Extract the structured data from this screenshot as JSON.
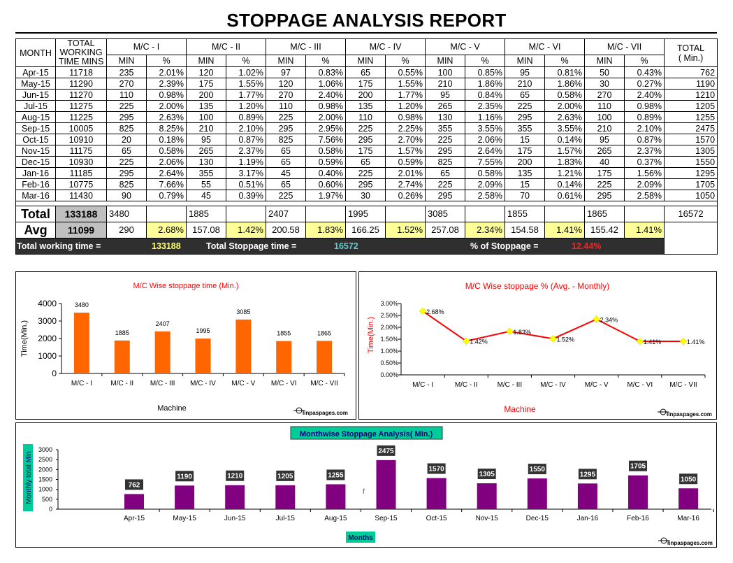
{
  "report": {
    "title": "STOPPAGE ANALYSIS REPORT",
    "headers": {
      "month": "MONTH",
      "total_working_1": "TOTAL",
      "total_working_2": "WORKING",
      "total_working_3": "TIME MINS",
      "machines": [
        "M/C - I",
        "M/C - II",
        "M/C - III",
        "M/C - IV",
        "M/C - V",
        "M/C - VI",
        "M/C - VII"
      ],
      "min": "MIN",
      "pct": "%",
      "total_1": "TOTAL",
      "total_2": "( Min.)"
    },
    "rows": [
      {
        "month": "Apr-15",
        "working": "11718",
        "cells": [
          [
            "235",
            "2.01%"
          ],
          [
            "120",
            "1.02%"
          ],
          [
            "97",
            "0.83%"
          ],
          [
            "65",
            "0.55%"
          ],
          [
            "100",
            "0.85%"
          ],
          [
            "95",
            "0.81%"
          ],
          [
            "50",
            "0.43%"
          ]
        ],
        "total": "762"
      },
      {
        "month": "May-15",
        "working": "11290",
        "cells": [
          [
            "270",
            "2.39%"
          ],
          [
            "175",
            "1.55%"
          ],
          [
            "120",
            "1.06%"
          ],
          [
            "175",
            "1.55%"
          ],
          [
            "210",
            "1.86%"
          ],
          [
            "210",
            "1.86%"
          ],
          [
            "30",
            "0.27%"
          ]
        ],
        "total": "1190"
      },
      {
        "month": "Jun-15",
        "working": "11270",
        "cells": [
          [
            "110",
            "0.98%"
          ],
          [
            "200",
            "1.77%"
          ],
          [
            "270",
            "2.40%"
          ],
          [
            "200",
            "1.77%"
          ],
          [
            "95",
            "0.84%"
          ],
          [
            "65",
            "0.58%"
          ],
          [
            "270",
            "2.40%"
          ]
        ],
        "total": "1210"
      },
      {
        "month": "Jul-15",
        "working": "11275",
        "cells": [
          [
            "225",
            "2.00%"
          ],
          [
            "135",
            "1.20%"
          ],
          [
            "110",
            "0.98%"
          ],
          [
            "135",
            "1.20%"
          ],
          [
            "265",
            "2.35%"
          ],
          [
            "225",
            "2.00%"
          ],
          [
            "110",
            "0.98%"
          ]
        ],
        "total": "1205"
      },
      {
        "month": "Aug-15",
        "working": "11225",
        "cells": [
          [
            "295",
            "2.63%"
          ],
          [
            "100",
            "0.89%"
          ],
          [
            "225",
            "2.00%"
          ],
          [
            "110",
            "0.98%"
          ],
          [
            "130",
            "1.16%"
          ],
          [
            "295",
            "2.63%"
          ],
          [
            "100",
            "0.89%"
          ]
        ],
        "total": "1255"
      },
      {
        "month": "Sep-15",
        "working": "10005",
        "cells": [
          [
            "825",
            "8.25%"
          ],
          [
            "210",
            "2.10%"
          ],
          [
            "295",
            "2.95%"
          ],
          [
            "225",
            "2.25%"
          ],
          [
            "355",
            "3.55%"
          ],
          [
            "355",
            "3.55%"
          ],
          [
            "210",
            "2.10%"
          ]
        ],
        "total": "2475"
      },
      {
        "month": "Oct-15",
        "working": "10910",
        "cells": [
          [
            "20",
            "0.18%"
          ],
          [
            "95",
            "0.87%"
          ],
          [
            "825",
            "7.56%"
          ],
          [
            "295",
            "2.70%"
          ],
          [
            "225",
            "2.06%"
          ],
          [
            "15",
            "0.14%"
          ],
          [
            "95",
            "0.87%"
          ]
        ],
        "total": "1570"
      },
      {
        "month": "Nov-15",
        "working": "11175",
        "cells": [
          [
            "65",
            "0.58%"
          ],
          [
            "265",
            "2.37%"
          ],
          [
            "65",
            "0.58%"
          ],
          [
            "175",
            "1.57%"
          ],
          [
            "295",
            "2.64%"
          ],
          [
            "175",
            "1.57%"
          ],
          [
            "265",
            "2.37%"
          ]
        ],
        "total": "1305"
      },
      {
        "month": "Dec-15",
        "working": "10930",
        "cells": [
          [
            "225",
            "2.06%"
          ],
          [
            "130",
            "1.19%"
          ],
          [
            "65",
            "0.59%"
          ],
          [
            "65",
            "0.59%"
          ],
          [
            "825",
            "7.55%"
          ],
          [
            "200",
            "1.83%"
          ],
          [
            "40",
            "0.37%"
          ]
        ],
        "total": "1550"
      },
      {
        "month": "Jan-16",
        "working": "11185",
        "cells": [
          [
            "295",
            "2.64%"
          ],
          [
            "355",
            "3.17%"
          ],
          [
            "45",
            "0.40%"
          ],
          [
            "225",
            "2.01%"
          ],
          [
            "65",
            "0.58%"
          ],
          [
            "135",
            "1.21%"
          ],
          [
            "175",
            "1.56%"
          ]
        ],
        "total": "1295"
      },
      {
        "month": "Feb-16",
        "working": "10775",
        "cells": [
          [
            "825",
            "7.66%"
          ],
          [
            "55",
            "0.51%"
          ],
          [
            "65",
            "0.60%"
          ],
          [
            "295",
            "2.74%"
          ],
          [
            "225",
            "2.09%"
          ],
          [
            "15",
            "0.14%"
          ],
          [
            "225",
            "2.09%"
          ]
        ],
        "total": "1705"
      },
      {
        "month": "Mar-16",
        "working": "11430",
        "cells": [
          [
            "90",
            "0.79%"
          ],
          [
            "45",
            "0.39%"
          ],
          [
            "225",
            "1.97%"
          ],
          [
            "30",
            "0.26%"
          ],
          [
            "295",
            "2.58%"
          ],
          [
            "70",
            "0.61%"
          ],
          [
            "295",
            "2.58%"
          ]
        ],
        "total": "1050"
      }
    ],
    "total_row": {
      "label": "Total",
      "working": "133188",
      "values": [
        "3480",
        "1885",
        "2407",
        "1995",
        "3085",
        "1855",
        "1865"
      ],
      "total": "16572"
    },
    "avg_row": {
      "label": "Avg",
      "working": "11099",
      "values": [
        [
          "290",
          "2.68%"
        ],
        [
          "157.08",
          "1.42%"
        ],
        [
          "200.58",
          "1.83%"
        ],
        [
          "166.25",
          "1.52%"
        ],
        [
          "257.08",
          "2.34%"
        ],
        [
          "154.58",
          "1.41%"
        ],
        [
          "155.42",
          "1.41%"
        ]
      ]
    },
    "summary": {
      "working_label": "Total working time =",
      "working_value": "133188",
      "stoppage_label": "Total Stoppage time =",
      "stoppage_value": "16572",
      "pct_label": "% of Stoppage =",
      "pct_value": "12.44%"
    }
  },
  "chart_data": [
    {
      "type": "bar",
      "title": "M/C Wise stoppage time (Min.)",
      "xlabel": "Machine",
      "ylabel": "Time(Min.)",
      "categories": [
        "M/C - I",
        "M/C - II",
        "M/C - III",
        "M/C - IV",
        "M/C - V",
        "M/C - VI",
        "M/C - VII"
      ],
      "values": [
        3480,
        1885,
        2407,
        1995,
        3085,
        1855,
        1865
      ],
      "ylim": [
        0,
        4000
      ],
      "yticks": [
        0,
        1000,
        2000,
        3000,
        4000
      ],
      "bar_color": "#ff6600",
      "watermark": "linpaspages.com"
    },
    {
      "type": "line",
      "title": "M/C Wise stoppage % (Avg. - Monthly)",
      "xlabel": "Machine",
      "ylabel": "Time(Min.)",
      "categories": [
        "M/C - I",
        "M/C - II",
        "M/C - III",
        "M/C - IV",
        "M/C - V",
        "M/C - VI",
        "M/C - VII"
      ],
      "values": [
        2.68,
        1.42,
        1.83,
        1.52,
        2.34,
        1.41,
        1.41
      ],
      "labels": [
        "2.68%",
        "1.42%",
        "1.83%",
        "1.52%",
        "2.34%",
        "1.41%",
        "1.41%"
      ],
      "ylim": [
        0,
        3
      ],
      "yticks": [
        "0.00%",
        "0.50%",
        "1.00%",
        "1.50%",
        "2.00%",
        "2.50%",
        "3.00%"
      ],
      "line_color": "#ff0000",
      "marker_color": "#ffff00",
      "watermark": "linpaspages.com"
    },
    {
      "type": "bar",
      "title": "Monthwise Stoppage Analysis( Min.)",
      "xlabel": "Months",
      "ylabel": "Monthly total Min",
      "categories": [
        "Apr-15",
        "May-15",
        "Jun-15",
        "Jul-15",
        "Aug-15",
        "Sep-15",
        "Oct-15",
        "Nov-15",
        "Dec-15",
        "Jan-16",
        "Feb-16",
        "Mar-16"
      ],
      "values": [
        762,
        1190,
        1210,
        1205,
        1255,
        2475,
        1570,
        1305,
        1550,
        1295,
        1705,
        1050
      ],
      "ylim": [
        0,
        3000
      ],
      "yticks": [
        0,
        500,
        1000,
        1500,
        2000,
        2500,
        3000
      ],
      "bar_color": "#800080",
      "stray_text": "f",
      "watermark": "linpaspages.com"
    }
  ]
}
